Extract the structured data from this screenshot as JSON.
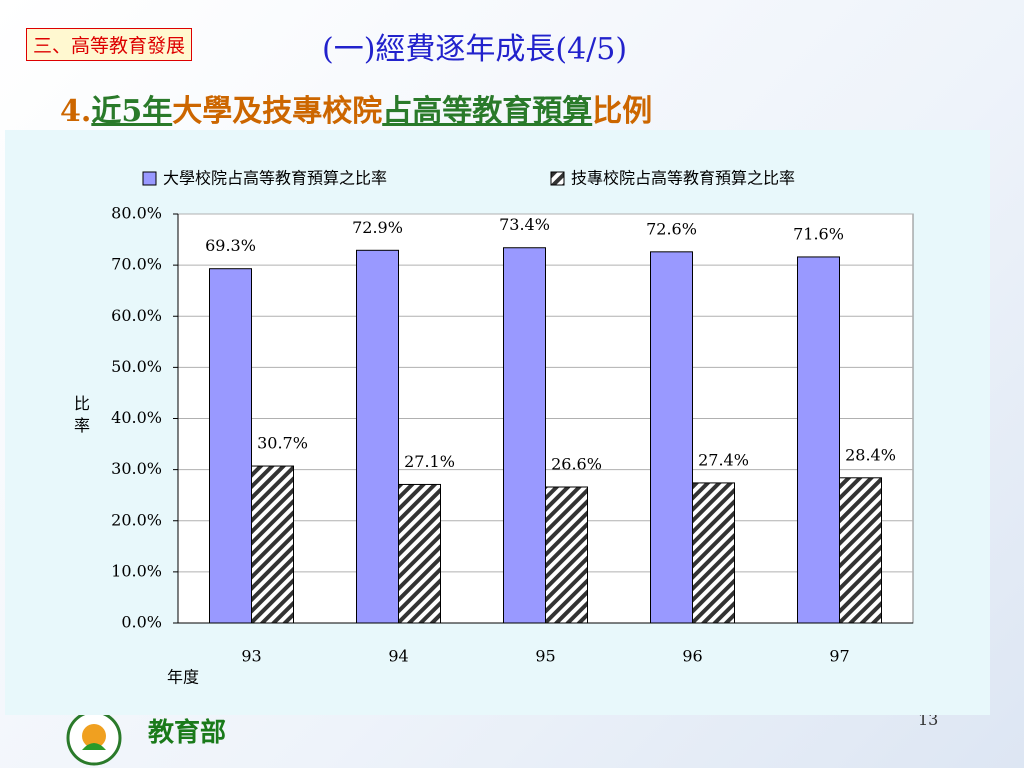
{
  "slide": {
    "section_tag": "三、高等教育發展",
    "title": "(一)經費逐年成長(4/5)",
    "subtitle": [
      "4.",
      "近5年",
      "大學及技專校院",
      "占高等教育預算",
      "比例"
    ],
    "logo_text": "教育部",
    "page_number": "13"
  },
  "chart_data": {
    "type": "bar",
    "categories": [
      "93",
      "94",
      "95",
      "96",
      "97"
    ],
    "series": [
      {
        "name": "大學校院占高等教育預算之比率",
        "color": "#9999ff",
        "hatch": false,
        "values": [
          69.3,
          72.9,
          73.4,
          72.6,
          71.6
        ],
        "value_labels": [
          "69.3%",
          "72.9%",
          "73.4%",
          "72.6%",
          "71.6%"
        ]
      },
      {
        "name": "技專校院占高等教育預算之比率",
        "color": "#333333",
        "hatch": true,
        "values": [
          30.7,
          27.1,
          26.6,
          27.4,
          28.4
        ],
        "value_labels": [
          "30.7%",
          "27.1%",
          "26.6%",
          "27.4%",
          "28.4%"
        ]
      }
    ],
    "ylabel": "比率",
    "xlabel": "年度",
    "ylim": [
      0,
      80
    ],
    "yticks": [
      {
        "value": 0,
        "label": "0.0%"
      },
      {
        "value": 10,
        "label": "10.0%"
      },
      {
        "value": 20,
        "label": "20.0%"
      },
      {
        "value": 30,
        "label": "30.0%"
      },
      {
        "value": 40,
        "label": "40.0%"
      },
      {
        "value": 50,
        "label": "50.0%"
      },
      {
        "value": 60,
        "label": "60.0%"
      },
      {
        "value": 70,
        "label": "70.0%"
      },
      {
        "value": 80,
        "label": "80.0%"
      }
    ],
    "grid": true,
    "legend": "top"
  }
}
